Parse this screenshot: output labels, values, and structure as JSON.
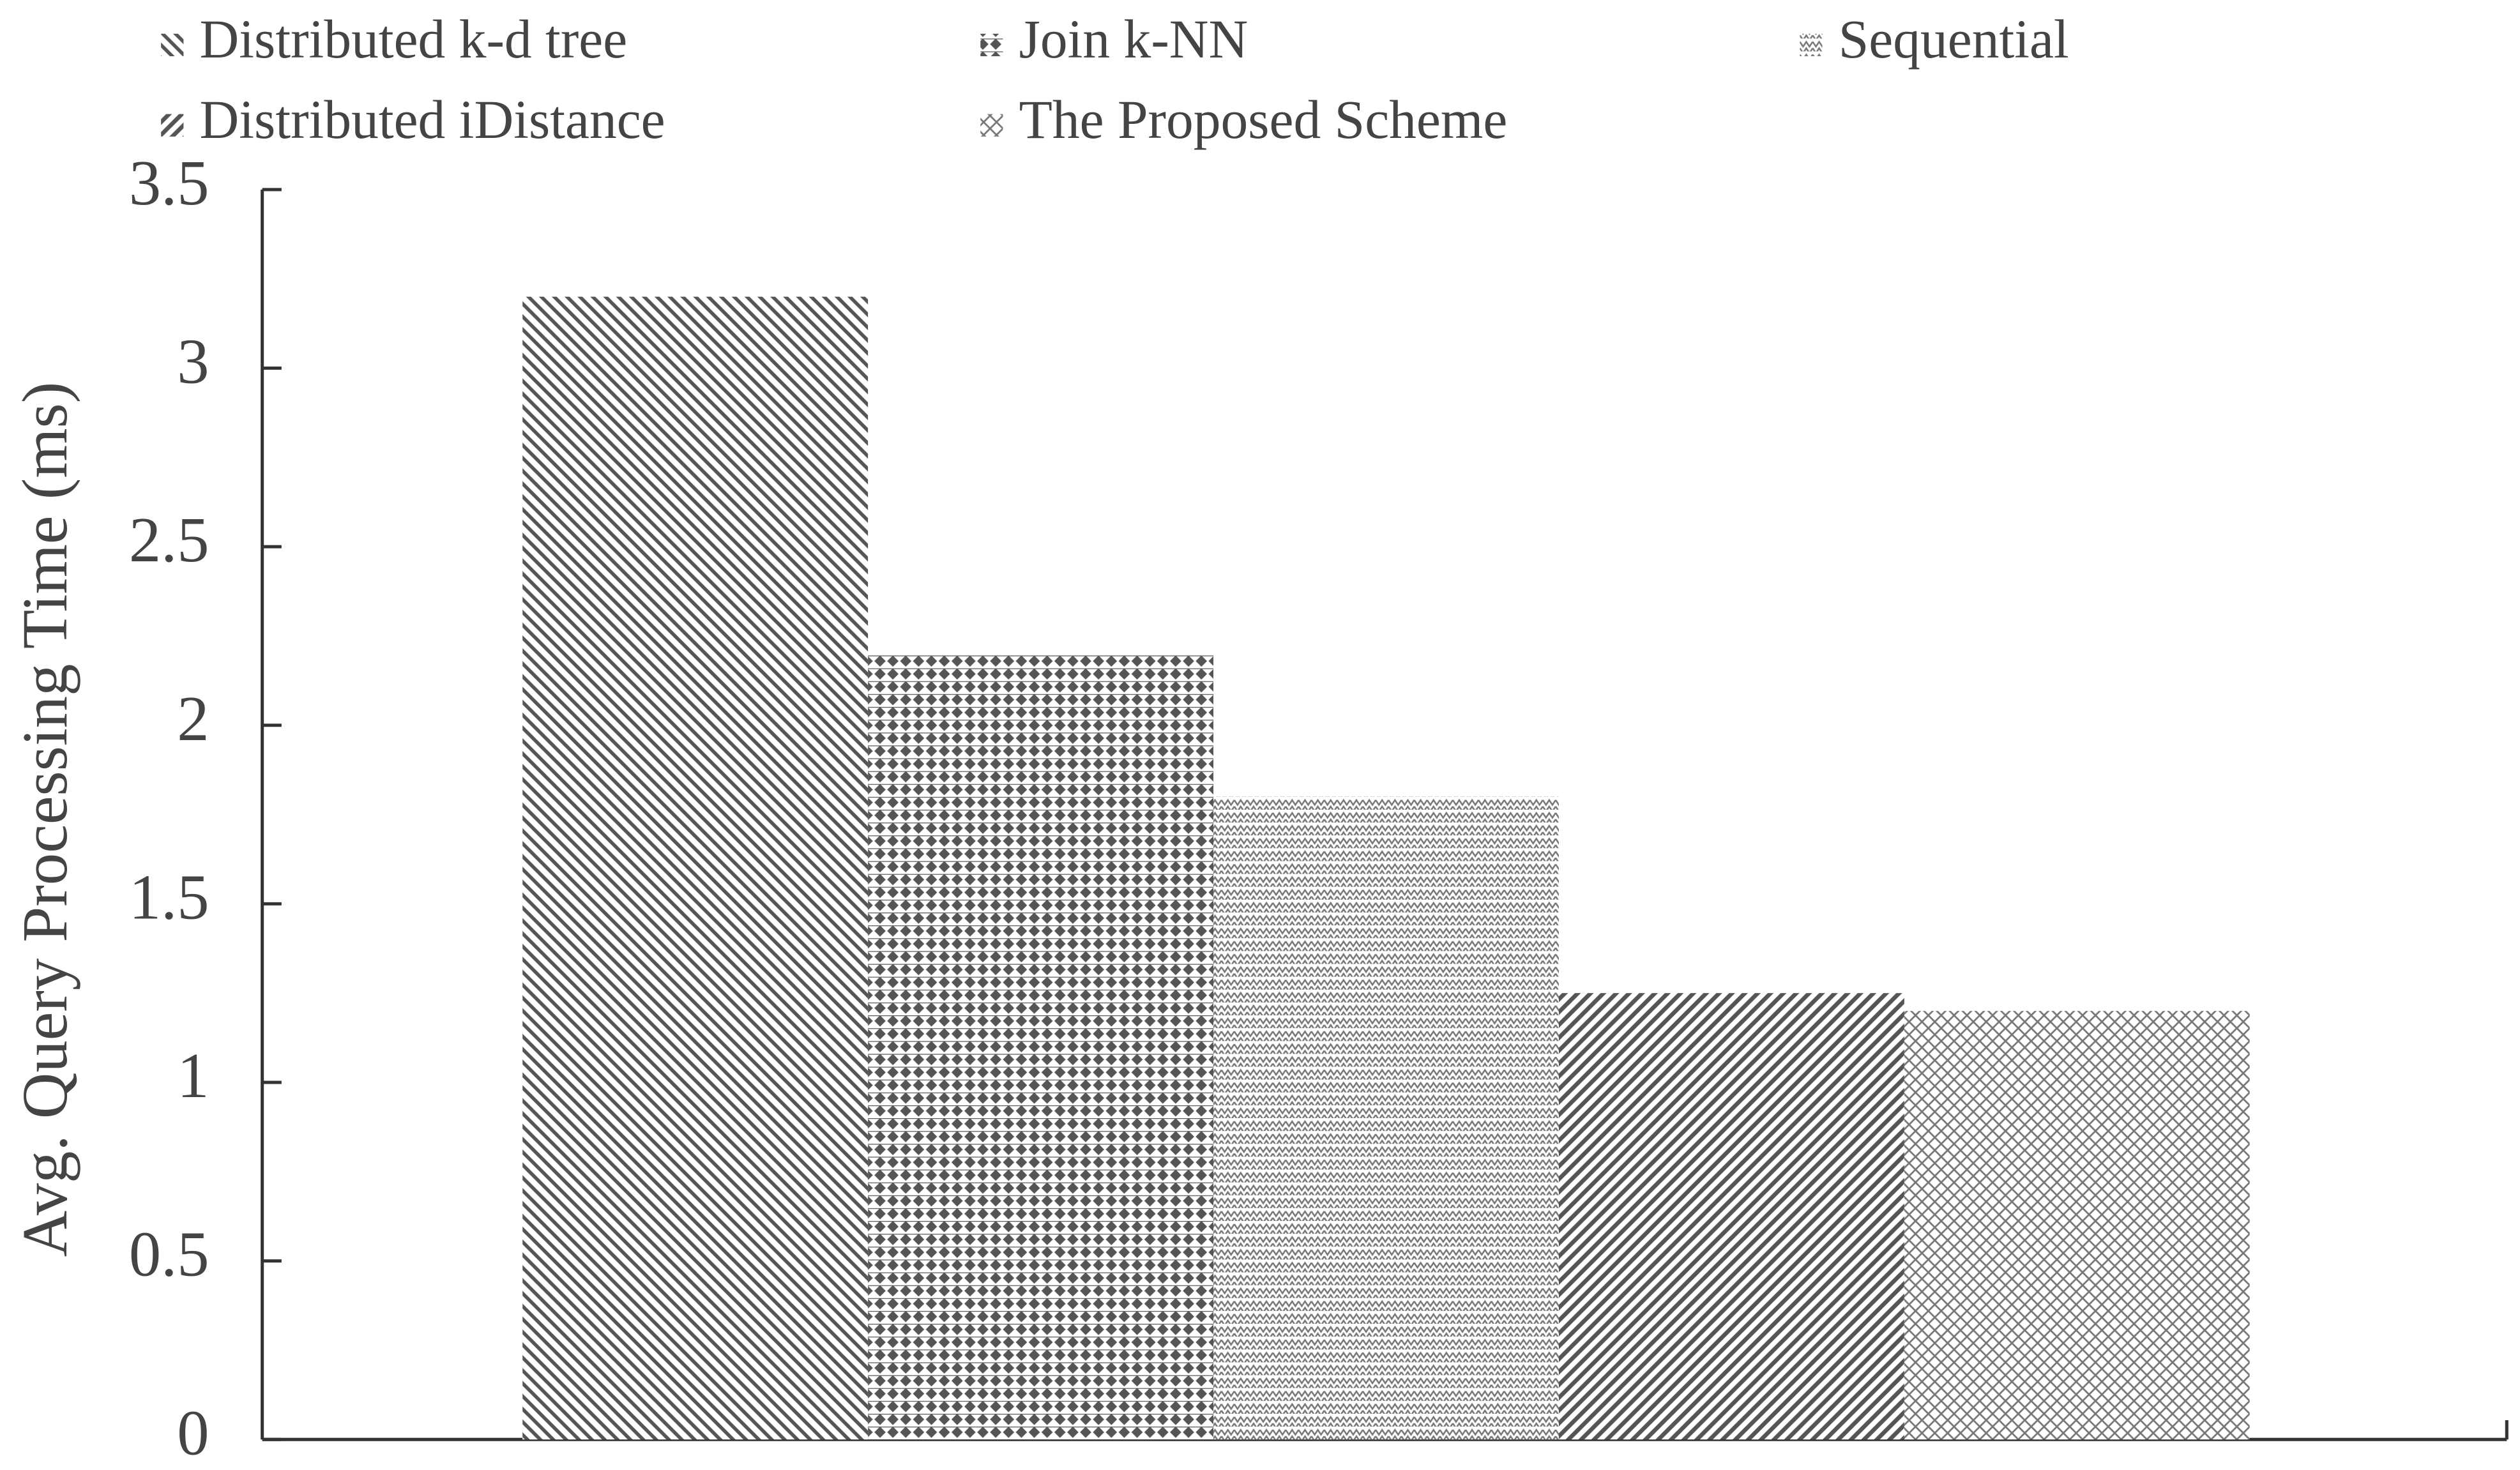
{
  "chart_data": {
    "type": "bar",
    "y_label": "Avg. Query Processing Time (ms)",
    "categories": [
      null
    ],
    "series": [
      {
        "name": "Distributed k-d tree",
        "color": "#555555",
        "values": [
          3.2
        ]
      },
      {
        "name": "Join k-NN",
        "color": "#555555",
        "values": [
          2.2
        ]
      },
      {
        "name": "Sequential",
        "color": "#777777",
        "values": [
          1.8
        ]
      },
      {
        "name": "Distributed iDistance",
        "color": "#555555",
        "values": [
          1.25
        ]
      },
      {
        "name": "The Proposed Scheme",
        "color": "#777777",
        "values": [
          1.2
        ]
      }
    ],
    "ylim": [
      0,
      3.5
    ],
    "yticks": [
      0,
      0.5,
      1,
      1.5,
      2,
      2.5,
      3,
      3.5
    ],
    "grid": false,
    "legend": "top"
  }
}
